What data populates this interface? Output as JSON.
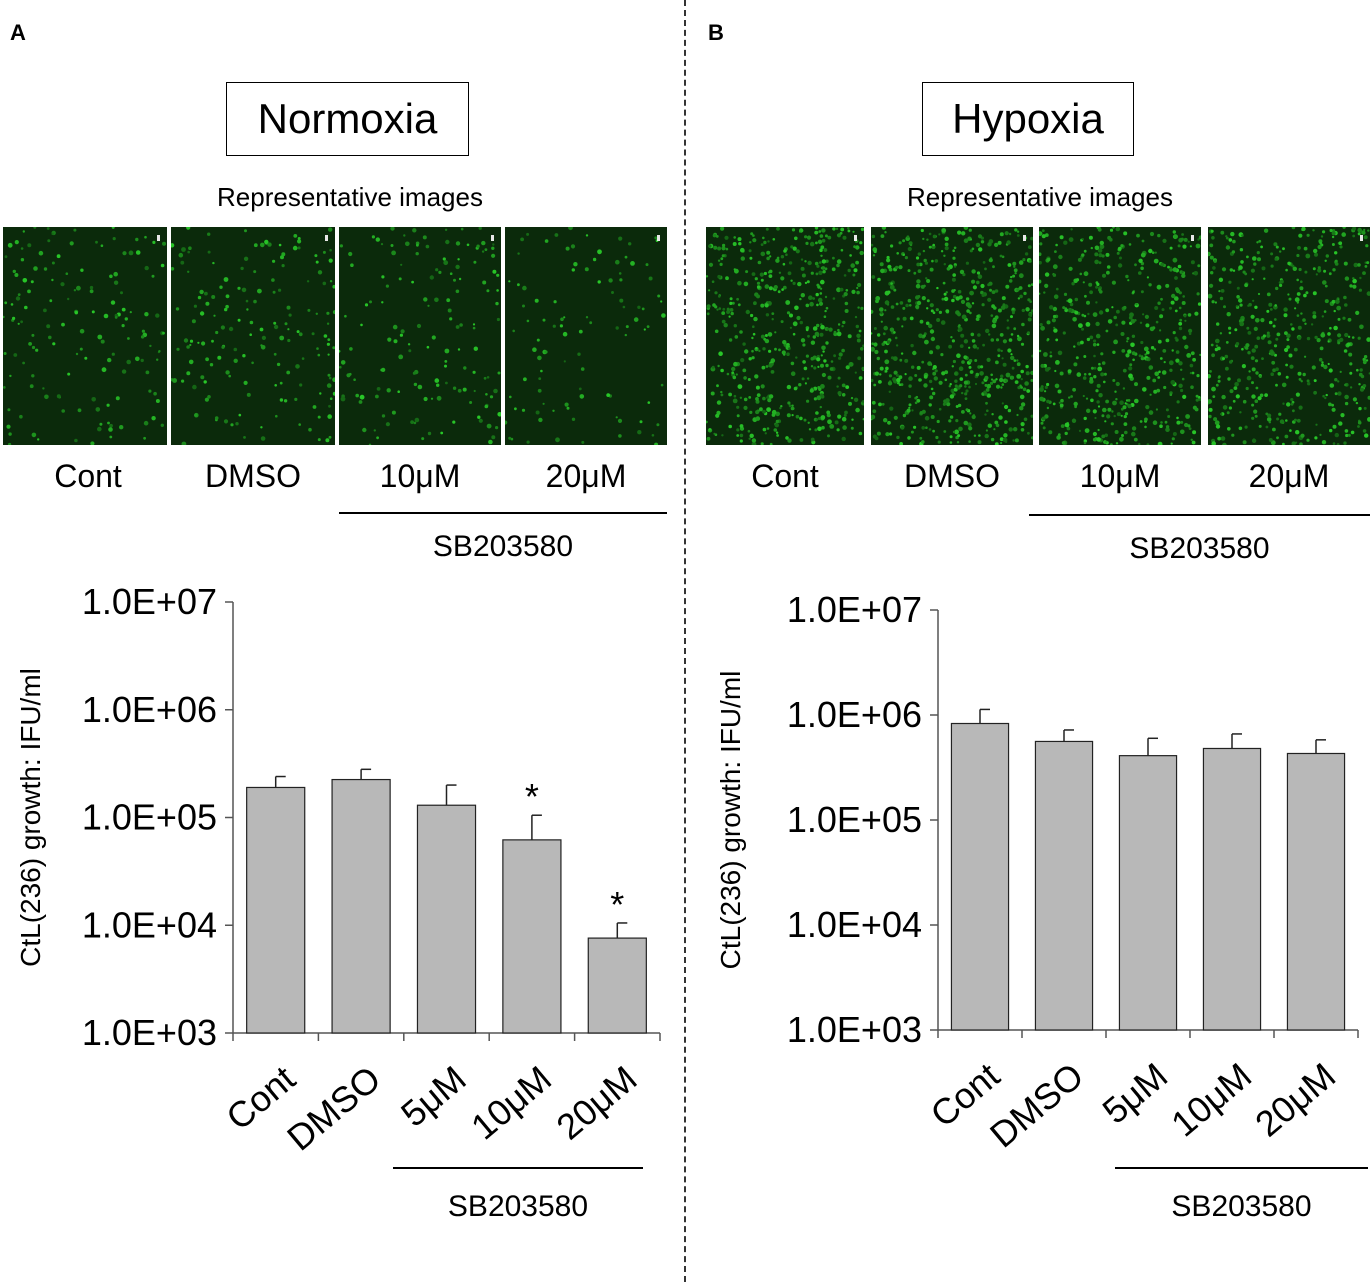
{
  "panels": [
    {
      "letter": "A",
      "condition": "Normoxia",
      "rep_title": "Representative images",
      "image_labels": [
        "Cont",
        "DMSO",
        "10μM",
        "20μM"
      ],
      "treatment": "SB203580",
      "image_density": [
        150,
        170,
        150,
        100
      ]
    },
    {
      "letter": "B",
      "condition": "Hypoxia",
      "rep_title": "Representative images",
      "image_labels": [
        "Cont",
        "DMSO",
        "10μM",
        "20μM"
      ],
      "treatment": "SB203580",
      "image_density": [
        520,
        600,
        500,
        480
      ]
    }
  ],
  "chart_data": [
    {
      "type": "bar",
      "title": "Normoxia",
      "ylabel": "CtL(236) growth: IFU/ml",
      "xlabel": "",
      "yscale": "log",
      "ylim": [
        1000,
        10000000
      ],
      "yticks": [
        "1.0E+03",
        "1.0E+04",
        "1.0E+05",
        "1.0E+06",
        "1.0E+07"
      ],
      "categories": [
        "Cont",
        "DMSO",
        "5μM",
        "10μM",
        "20μM"
      ],
      "values": [
        190000,
        225000,
        130000,
        62000,
        7600
      ],
      "error_upper": [
        240000,
        280000,
        200000,
        105000,
        10500
      ],
      "significance": [
        "",
        "",
        "",
        "*",
        "*"
      ],
      "group_label": "SB203580",
      "bar_color": "#b8b8b8"
    },
    {
      "type": "bar",
      "title": "Hypoxia",
      "ylabel": "CtL(236) growth: IFU/ml",
      "xlabel": "",
      "yscale": "log",
      "ylim": [
        1000,
        10000000
      ],
      "yticks": [
        "1.0E+03",
        "1.0E+04",
        "1.0E+05",
        "1.0E+06",
        "1.0E+07"
      ],
      "categories": [
        "Cont",
        "DMSO",
        "5μM",
        "10μM",
        "20μM"
      ],
      "values": [
        830000,
        560000,
        410000,
        480000,
        430000
      ],
      "error_upper": [
        1130000,
        720000,
        600000,
        660000,
        580000
      ],
      "significance": [
        "",
        "",
        "",
        "",
        ""
      ],
      "group_label": "SB203580",
      "bar_color": "#b8b8b8"
    }
  ]
}
